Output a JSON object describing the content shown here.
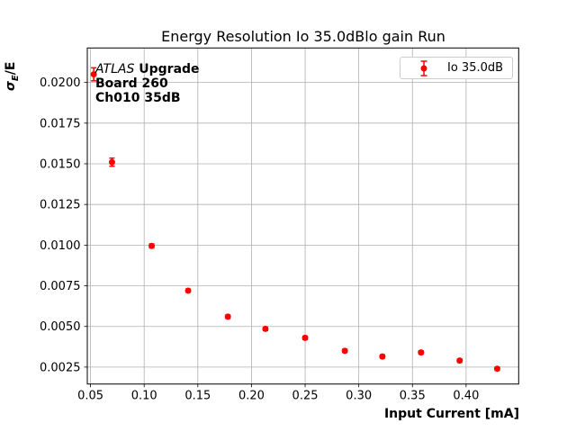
{
  "chart_data": {
    "type": "scatter",
    "title": "Energy Resolution Io 35.0dBlo gain Run",
    "xlabel": "Input Current [mA]",
    "ylabel": {
      "sigma": "σ",
      "subscript": "E",
      "rest": "/E"
    },
    "xlim": [
      0.047,
      0.449
    ],
    "ylim": [
      0.00146,
      0.02212
    ],
    "xtick_values": [
      0.05,
      0.1,
      0.15,
      0.2,
      0.25,
      0.3,
      0.35,
      0.4
    ],
    "xtick_labels": [
      "0.05",
      "0.10",
      "0.15",
      "0.20",
      "0.25",
      "0.30",
      "0.35",
      "0.40"
    ],
    "ytick_values": [
      0.0025,
      0.005,
      0.0075,
      0.01,
      0.0125,
      0.015,
      0.0175,
      0.02
    ],
    "ytick_labels": [
      "0.0025",
      "0.0050",
      "0.0075",
      "0.0100",
      "0.0125",
      "0.0150",
      "0.0175",
      "0.0200"
    ],
    "grid": true,
    "legend": {
      "label": "Io 35.0dB",
      "position": "top-right"
    },
    "annotation": {
      "italic_text": "ATLAS",
      "bold_rest_line1": " Upgrade",
      "line2": "Board 260",
      "line3": "Ch010 35dB"
    },
    "series": [
      {
        "name": "Io 35.0dB",
        "marker": "circle",
        "x": [
          0.053,
          0.07,
          0.107,
          0.141,
          0.178,
          0.213,
          0.25,
          0.287,
          0.322,
          0.358,
          0.394,
          0.429
        ],
        "y": [
          0.0205,
          0.0151,
          0.00995,
          0.0072,
          0.0056,
          0.00485,
          0.0043,
          0.0035,
          0.00315,
          0.0034,
          0.0029,
          0.0024
        ],
        "yerr": [
          0.0004,
          0.00025,
          0.00012,
          0.0001,
          0.0001,
          0.0001,
          0.0001,
          0.0001,
          0.0001,
          0.0001,
          0.0001,
          0.0001
        ]
      }
    ],
    "styles": {
      "marker_color": "#ff0000",
      "grid_color": "#b0b0b0",
      "frame_color": "#000000",
      "legend_border_color": "#cccccc",
      "background": "#ffffff"
    }
  }
}
